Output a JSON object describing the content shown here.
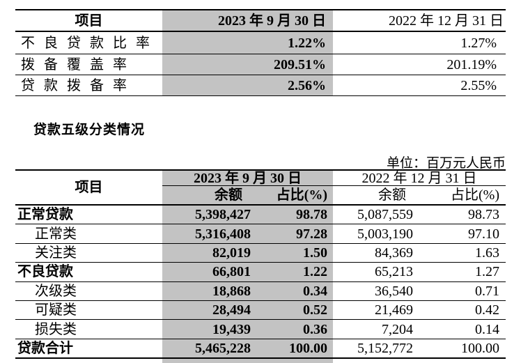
{
  "colors": {
    "shade": "#c3c3c3",
    "line": "#000000",
    "text": "#000000",
    "background": "#ffffff"
  },
  "table1": {
    "header": {
      "item": "项目",
      "date_2023": "2023 年 9 月 30 日",
      "date_2022": "2022 年 12 月 31 日"
    },
    "rows": [
      {
        "label": "不良贷款比率",
        "v2023": "1.22%",
        "v2022": "1.27%"
      },
      {
        "label": "拨备覆盖率",
        "v2023": "209.51%",
        "v2022": "201.19%"
      },
      {
        "label": "贷款拨备率",
        "v2023": "2.56%",
        "v2022": "2.55%"
      }
    ]
  },
  "section_title": "贷款五级分类情况",
  "unit_note": "单位：百万元人民币",
  "table2": {
    "header": {
      "item": "项目",
      "date_2023": "2023 年 9 月 30 日",
      "date_2022": "2022 年 12 月 31 日",
      "balance_2023": "余额",
      "pct_2023": "占比(%)",
      "balance_2022": "余额",
      "pct_2022": "占比(%)"
    },
    "rows": [
      {
        "label": "正常贷款",
        "b2023": "5,398,427",
        "p2023": "98.78",
        "b2022": "5,087,559",
        "p2022": "98.73"
      },
      {
        "label": "正常类",
        "b2023": "5,316,408",
        "p2023": "97.28",
        "b2022": "5,003,190",
        "p2022": "97.10"
      },
      {
        "label": "关注类",
        "b2023": "82,019",
        "p2023": "1.50",
        "b2022": "84,369",
        "p2022": "1.63"
      },
      {
        "label": "不良贷款",
        "b2023": "66,801",
        "p2023": "1.22",
        "b2022": "65,213",
        "p2022": "1.27"
      },
      {
        "label": "次级类",
        "b2023": "18,868",
        "p2023": "0.34",
        "b2022": "36,540",
        "p2022": "0.71"
      },
      {
        "label": "可疑类",
        "b2023": "28,494",
        "p2023": "0.52",
        "b2022": "21,469",
        "p2022": "0.42"
      },
      {
        "label": "损失类",
        "b2023": "19,439",
        "p2023": "0.36",
        "b2022": "7,204",
        "p2022": "0.14"
      },
      {
        "label": "贷款合计",
        "b2023": "5,465,228",
        "p2023": "100.00",
        "b2022": "5,152,772",
        "p2022": "100.00"
      }
    ]
  }
}
